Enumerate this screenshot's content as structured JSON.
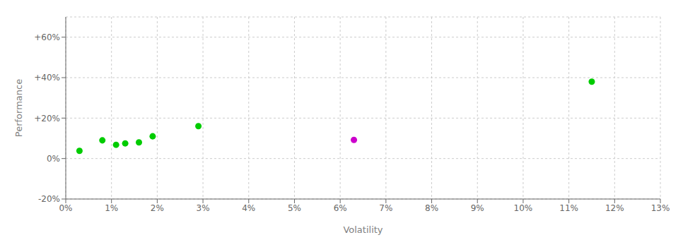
{
  "chart_data": {
    "type": "scatter",
    "xlabel": "Volatility",
    "ylabel": "Performance",
    "xlim": [
      0.0,
      0.13
    ],
    "ylim": [
      -0.2,
      0.7
    ],
    "xticks": [
      {
        "value": 0.0,
        "label": "0%"
      },
      {
        "value": 0.01,
        "label": "1%"
      },
      {
        "value": 0.02,
        "label": "2%"
      },
      {
        "value": 0.03,
        "label": "3%"
      },
      {
        "value": 0.04,
        "label": "4%"
      },
      {
        "value": 0.05,
        "label": "5%"
      },
      {
        "value": 0.06,
        "label": "6%"
      },
      {
        "value": 0.07,
        "label": "7%"
      },
      {
        "value": 0.08,
        "label": "8%"
      },
      {
        "value": 0.09,
        "label": "9%"
      },
      {
        "value": 0.1,
        "label": "10%"
      },
      {
        "value": 0.11,
        "label": "11%"
      },
      {
        "value": 0.12,
        "label": "12%"
      },
      {
        "value": 0.13,
        "label": "13%"
      }
    ],
    "yticks": [
      {
        "value": -0.2,
        "label": "-20%"
      },
      {
        "value": 0.0,
        "label": "0%"
      },
      {
        "value": 0.2,
        "label": "+20%"
      },
      {
        "value": 0.4,
        "label": "+40%"
      },
      {
        "value": 0.6,
        "label": "+60%"
      }
    ],
    "grid": true,
    "series": [
      {
        "color": "#00cc00",
        "x": [
          0.003,
          0.008,
          0.011,
          0.013,
          0.016,
          0.019,
          0.029,
          0.115
        ],
        "y": [
          0.038,
          0.09,
          0.068,
          0.075,
          0.08,
          0.11,
          0.16,
          0.38
        ]
      },
      {
        "color": "#cc00cc",
        "x": [
          0.063
        ],
        "y": [
          0.092
        ]
      }
    ]
  }
}
